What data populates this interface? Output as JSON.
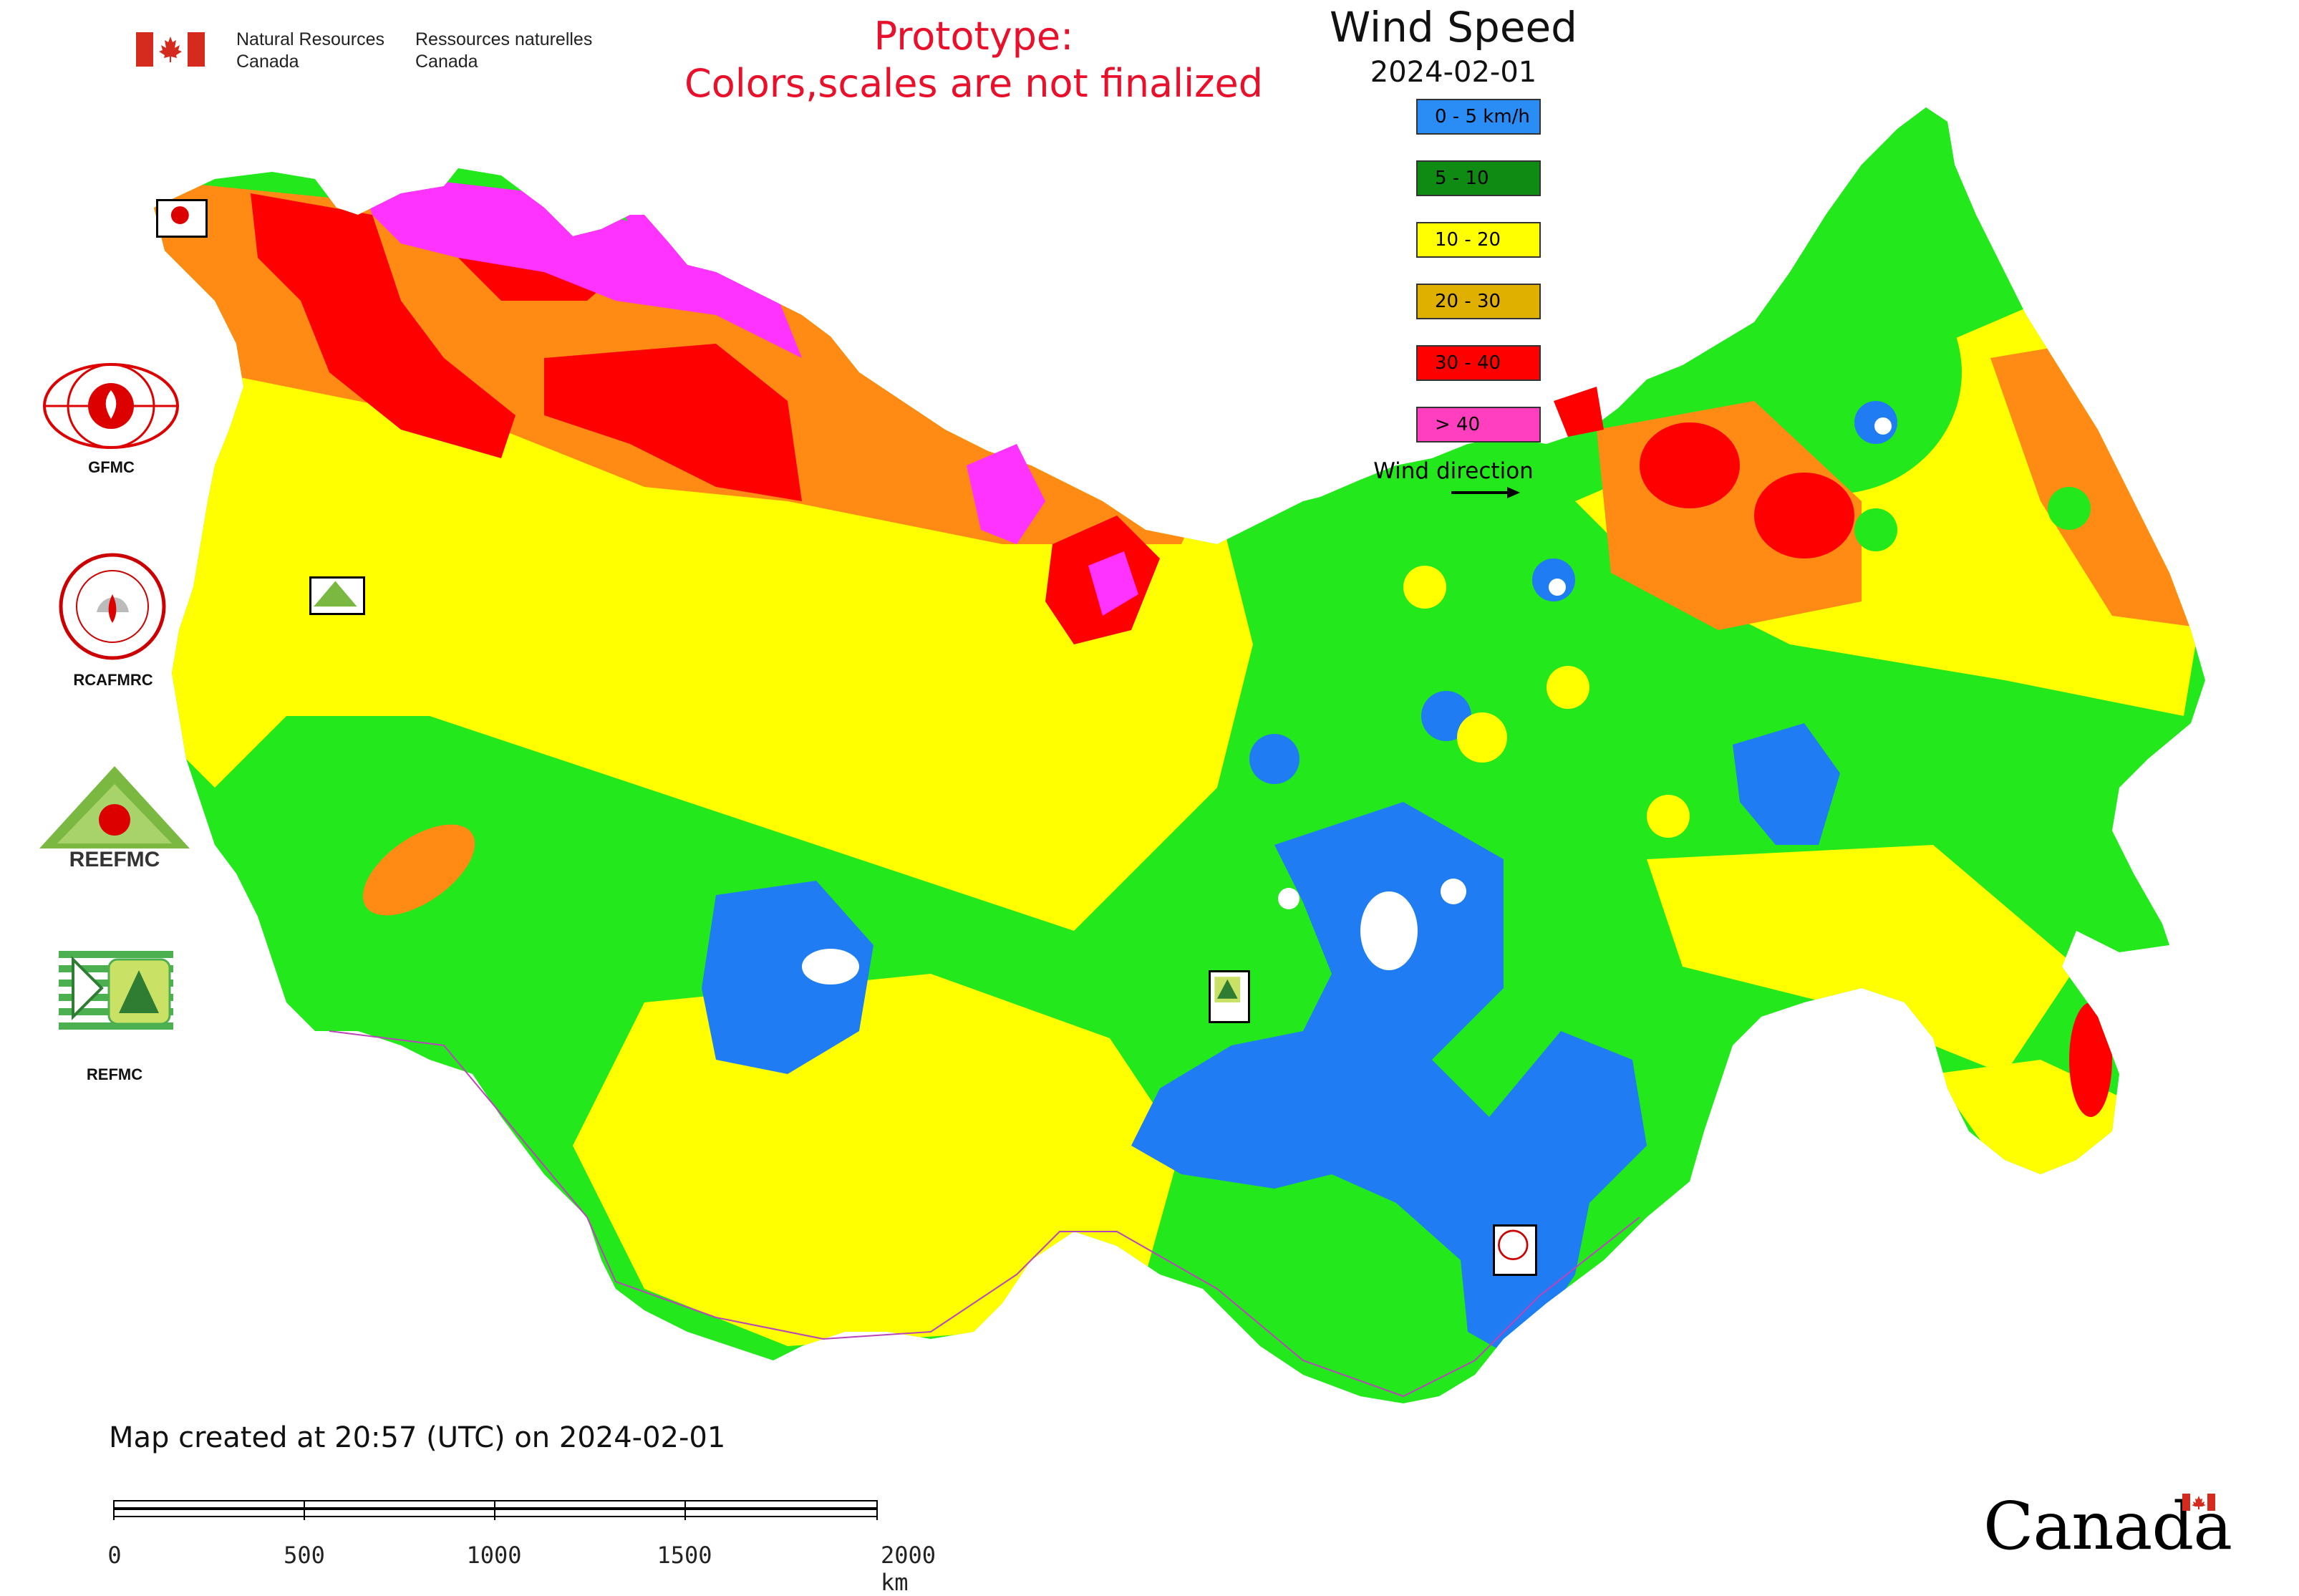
{
  "header": {
    "department_en": [
      "Natural Resources",
      "Canada"
    ],
    "department_fr": [
      "Ressources naturelles",
      "Canada"
    ],
    "prototype_notice": [
      "Prototype:",
      "Colors,scales are not finalized"
    ]
  },
  "legend": {
    "title": "Wind Speed",
    "date": "2024-02-01",
    "classes": [
      {
        "label": "0 - 5 km/h",
        "color": "#2a8cf5"
      },
      {
        "label": "5 - 10",
        "color": "#0f8a12"
      },
      {
        "label": "10 - 20",
        "color": "#ffff00"
      },
      {
        "label": "20 - 30",
        "color": "#e0b000"
      },
      {
        "label": "30 - 40",
        "color": "#ff0000"
      },
      {
        "label": "> 40",
        "color": "#ff3fbf"
      }
    ],
    "wind_direction_label": "Wind direction"
  },
  "map_colors": {
    "calm": "#1f7cf2",
    "light": "#22e81c",
    "moderate": "#ffff00",
    "fresh": "#ff8a14",
    "strong": "#ff0000",
    "gale": "#ff33ff",
    "border": "#bb44bb"
  },
  "side_logos": [
    {
      "label": "GFMC"
    },
    {
      "label": "RCAFMRC"
    },
    {
      "label": "REEFMC"
    },
    {
      "label": "REFMC"
    }
  ],
  "footer": {
    "created": "Map created at 20:57 (UTC) on 2024-02-01",
    "scale_labels": [
      "0",
      "500",
      "1000",
      "1500",
      "2000 km"
    ]
  },
  "wordmark": "Canada"
}
